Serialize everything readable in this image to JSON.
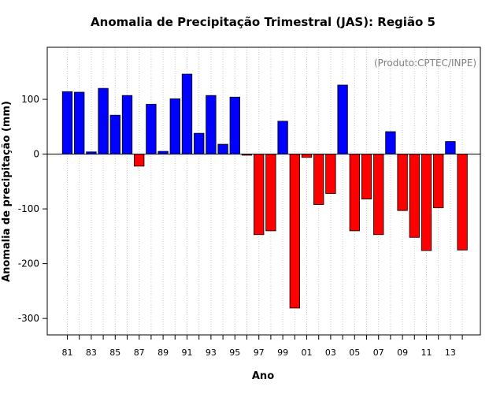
{
  "chart_data": {
    "type": "bar",
    "title": "Anomalia de Precipitação Trimestral (JAS): Região 5",
    "xlabel": "Ano",
    "ylabel": "Anomalia de precipitação (mm)",
    "annotation": "(Produto:CPTEC/INPE)",
    "ylim": [
      -330,
      195
    ],
    "yticks": [
      -300,
      -200,
      -100,
      0,
      100
    ],
    "grid": "vertical-dotted",
    "positive_color": "#0000ff",
    "negative_color": "#ff0000",
    "categories": [
      "81",
      "82",
      "83",
      "84",
      "85",
      "86",
      "87",
      "88",
      "89",
      "90",
      "91",
      "92",
      "93",
      "94",
      "95",
      "96",
      "97",
      "98",
      "99",
      "00",
      "01",
      "02",
      "03",
      "04",
      "05",
      "06",
      "07",
      "08",
      "09",
      "10",
      "11",
      "12",
      "13",
      "14"
    ],
    "tick_labels": [
      "81",
      "83",
      "85",
      "87",
      "89",
      "91",
      "93",
      "95",
      "97",
      "99",
      "01",
      "03",
      "05",
      "07",
      "09",
      "11",
      "13"
    ],
    "values": [
      114,
      113,
      4,
      120,
      71,
      107,
      -22,
      91,
      5,
      101,
      146,
      38,
      107,
      18,
      104,
      -2,
      -147,
      -140,
      60,
      -281,
      -6,
      -92,
      -72,
      126,
      -140,
      -82,
      -147,
      41,
      -103,
      -152,
      -176,
      -98,
      23,
      -175
    ]
  }
}
